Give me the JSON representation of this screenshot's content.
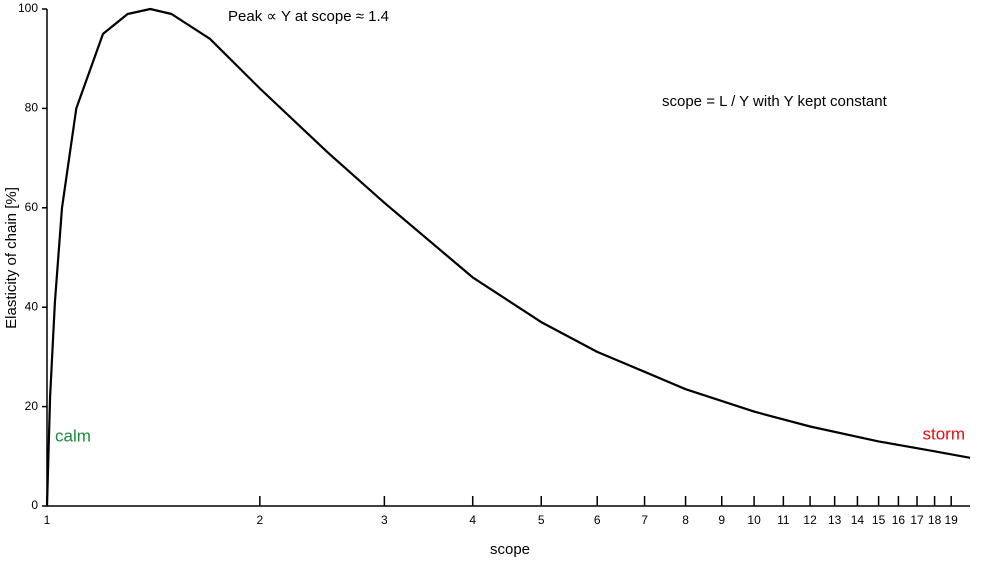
{
  "chart_data": {
    "type": "line",
    "xlabel": "scope",
    "ylabel": "Elasticity of chain [%]",
    "xscale": "log",
    "xlim": [
      1,
      20.2
    ],
    "ylim": [
      0,
      100
    ],
    "xticks": [
      1,
      2,
      3,
      4,
      5,
      6,
      7,
      8,
      9,
      10,
      11,
      12,
      13,
      14,
      15,
      16,
      17,
      18,
      19
    ],
    "yticks": [
      0,
      20,
      40,
      60,
      80,
      100
    ],
    "grid": false,
    "series": [
      {
        "name": "Elasticity",
        "color": "#000000",
        "x": [
          1,
          1.01,
          1.026,
          1.05,
          1.1,
          1.2,
          1.3,
          1.4,
          1.5,
          1.7,
          2,
          2.5,
          3,
          4,
          5,
          6,
          7,
          8,
          10,
          12,
          15,
          18,
          20.2
        ],
        "values": [
          0,
          22,
          41,
          60,
          80,
          95,
          99,
          100,
          99,
          94,
          84,
          71,
          61,
          46,
          37,
          31,
          27,
          23.5,
          19,
          16,
          13,
          11,
          9.7
        ]
      }
    ],
    "annotations": [
      {
        "text": "Peak ∝ Y  at scope ≈ 1.4",
        "color": "#000000"
      },
      {
        "text": "scope = L / Y with Y kept constant",
        "color": "#000000"
      },
      {
        "text": "calm",
        "color": "#1a8a3a"
      },
      {
        "text": "storm",
        "color": "#e01010"
      }
    ]
  }
}
